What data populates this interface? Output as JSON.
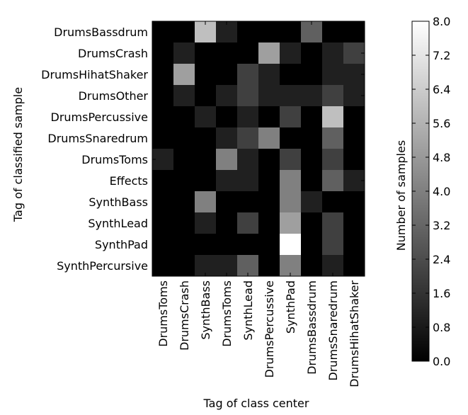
{
  "chart_data": {
    "type": "heatmap",
    "x_categories": [
      "DrumsToms",
      "DrumsCrash",
      "SynthBass",
      "DrumsToms",
      "SynthLead",
      "DrumsPercussive",
      "SynthPad",
      "DrumsBassdrum",
      "DrumsSnaredrum",
      "DrumsHihatShaker"
    ],
    "y_categories": [
      "DrumsBassdrum",
      "DrumsCrash",
      "DrumsHihatShaker",
      "DrumsOther",
      "DrumsPercussive",
      "DrumsSnaredrum",
      "DrumsToms",
      "Effects",
      "SynthBass",
      "SynthLead",
      "SynthPad",
      "SynthPercursive"
    ],
    "values": [
      [
        0,
        0,
        6,
        1,
        0,
        0,
        0,
        3,
        0,
        0
      ],
      [
        0,
        1,
        0,
        0,
        0,
        5,
        1,
        0,
        1,
        2
      ],
      [
        0,
        5,
        0,
        0,
        2,
        1,
        0,
        0,
        1,
        1
      ],
      [
        0,
        1,
        0,
        1,
        2,
        1,
        1,
        1,
        2,
        1
      ],
      [
        0,
        0,
        1,
        0,
        1,
        0,
        2,
        0,
        6,
        0
      ],
      [
        0,
        0,
        0,
        1,
        2,
        4,
        0,
        0,
        3,
        0
      ],
      [
        1,
        0,
        0,
        4,
        1,
        0,
        2,
        0,
        2,
        0
      ],
      [
        0,
        0,
        0,
        1,
        1,
        0,
        4,
        0,
        3,
        1
      ],
      [
        0,
        0,
        4,
        0,
        0,
        0,
        4,
        1,
        0,
        0
      ],
      [
        0,
        0,
        1,
        0,
        2,
        0,
        5,
        0,
        2,
        0
      ],
      [
        0,
        0,
        0,
        0,
        0,
        0,
        8,
        0,
        2,
        0
      ],
      [
        0,
        0,
        1,
        1,
        3,
        0,
        4,
        0,
        1,
        0
      ]
    ],
    "xlabel": "Tag of class center",
    "ylabel": "Tag of classified sample",
    "colorbar": {
      "label": "Number of samples",
      "min": 0.0,
      "max": 8.0,
      "ticks": [
        "0.0",
        "0.8",
        "1.6",
        "2.4",
        "3.2",
        "4.0",
        "4.8",
        "5.6",
        "6.4",
        "7.2",
        "8.0"
      ]
    },
    "colormap": "gray"
  }
}
